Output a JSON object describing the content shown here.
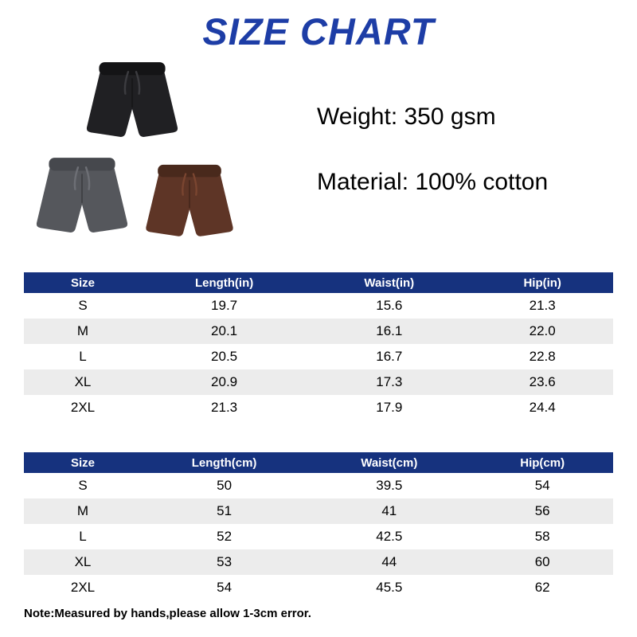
{
  "page": {
    "title": "SIZE CHART",
    "weight": "Weight: 350 gsm",
    "material": "Material: 100% cotton",
    "note": "Note:Measured by hands,please allow 1-3cm error."
  },
  "colors": {
    "title_blue": "#1d3da6",
    "table_header_navy": "#16327e",
    "row_stripe_gray": "#ececec"
  },
  "shorts": [
    {
      "name": "black-shorts",
      "body": "#202023",
      "band": "#141416",
      "string": "#3c3c40"
    },
    {
      "name": "gray-shorts",
      "body": "#55575c",
      "band": "#46484d",
      "string": "#6d6f75"
    },
    {
      "name": "brown-shorts",
      "body": "#5e3526",
      "band": "#49291c",
      "string": "#7a4530"
    }
  ],
  "chart_data": [
    {
      "type": "table",
      "columns": [
        "Size",
        "Length(in)",
        "Waist(in)",
        "Hip(in)"
      ],
      "rows": [
        [
          "S",
          "19.7",
          "15.6",
          "21.3"
        ],
        [
          "M",
          "20.1",
          "16.1",
          "22.0"
        ],
        [
          "L",
          "20.5",
          "16.7",
          "22.8"
        ],
        [
          "XL",
          "20.9",
          "17.3",
          "23.6"
        ],
        [
          "2XL",
          "21.3",
          "17.9",
          "24.4"
        ]
      ]
    },
    {
      "type": "table",
      "columns": [
        "Size",
        "Length(cm)",
        "Waist(cm)",
        "Hip(cm)"
      ],
      "rows": [
        [
          "S",
          "50",
          "39.5",
          "54"
        ],
        [
          "M",
          "51",
          "41",
          "56"
        ],
        [
          "L",
          "52",
          "42.5",
          "58"
        ],
        [
          "XL",
          "53",
          "44",
          "60"
        ],
        [
          "2XL",
          "54",
          "45.5",
          "62"
        ]
      ]
    }
  ]
}
